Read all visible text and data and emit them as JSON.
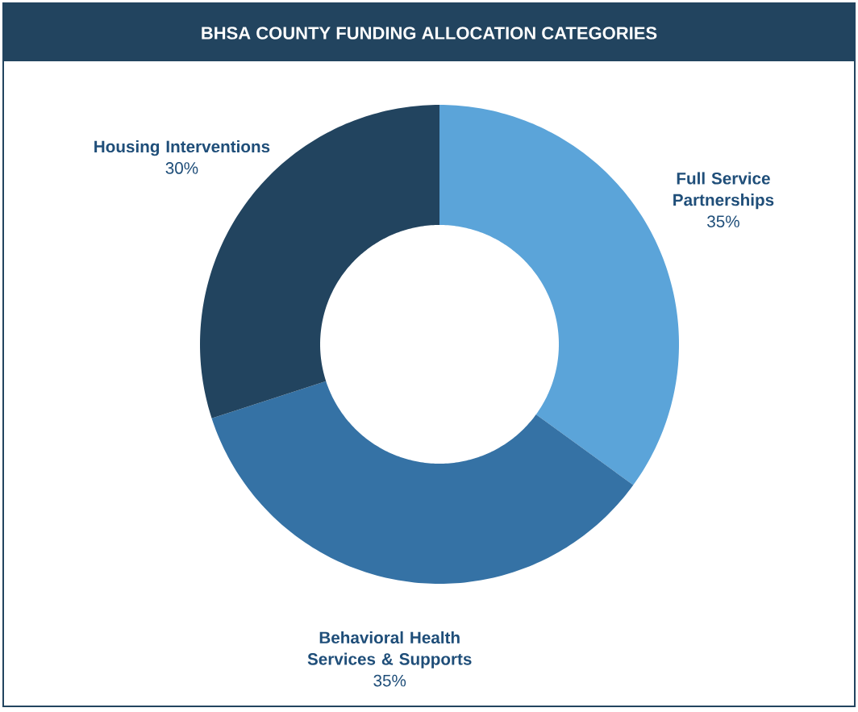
{
  "chart_data": {
    "type": "donut",
    "title": "BHSA COUNTY FUNDING ALLOCATION CATEGORIES",
    "categories": [
      "Full Service Partnerships",
      "Behavioral Health Services & Supports",
      "Housing Interventions"
    ],
    "values": [
      35,
      35,
      30
    ],
    "value_labels": [
      "35%",
      "35%",
      "30%"
    ],
    "colors": [
      "#5ba4d9",
      "#3572a5",
      "#22445f"
    ]
  }
}
